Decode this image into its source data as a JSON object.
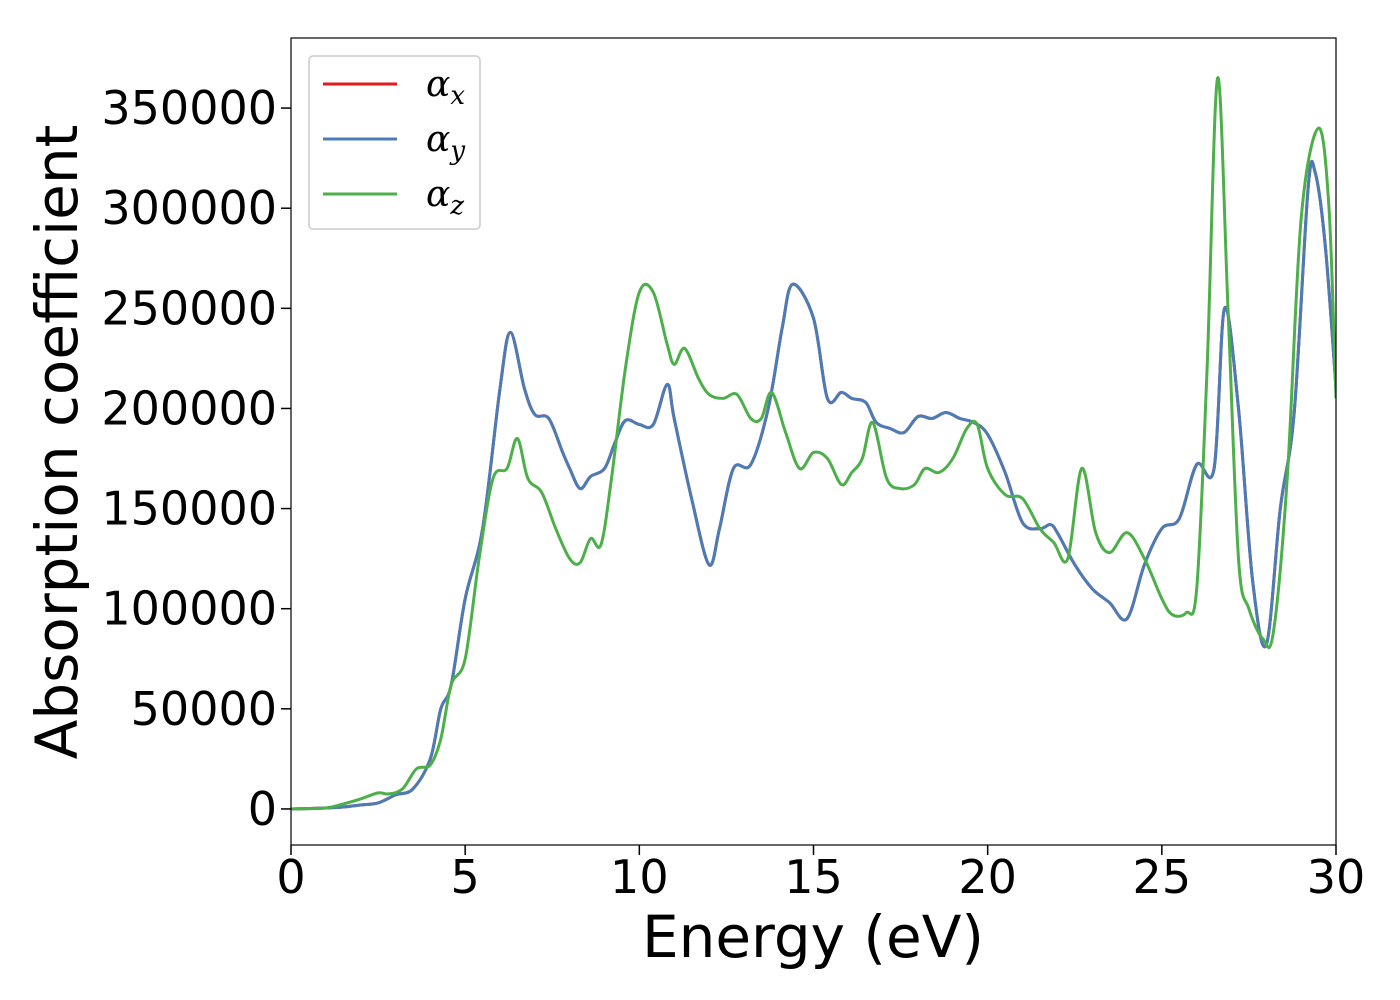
{
  "chart_data": {
    "type": "line",
    "title": "",
    "xlabel": "Energy (eV)",
    "ylabel": "Absorption coefficient",
    "xlim": [
      0,
      30
    ],
    "ylim": [
      -18000,
      385000
    ],
    "xticks": [
      0,
      5,
      10,
      15,
      20,
      25,
      30
    ],
    "xtick_labels": [
      "0",
      "5",
      "10",
      "15",
      "20",
      "25",
      "30"
    ],
    "yticks": [
      0,
      50000,
      100000,
      150000,
      200000,
      250000,
      300000,
      350000
    ],
    "ytick_labels": [
      "0",
      "50000",
      "100000",
      "150000",
      "200000",
      "250000",
      "300000",
      "350000"
    ],
    "grid": false,
    "legend_position": "top-left",
    "series": [
      {
        "name": "α",
        "subscript": "x",
        "color": "#e41a1c",
        "x": [
          0,
          1,
          1.5,
          2,
          2.5,
          3,
          3.5,
          4,
          4.3,
          4.6,
          5,
          5.5,
          6,
          6.3,
          6.7,
          7,
          7.4,
          7.8,
          8,
          8.3,
          8.6,
          9,
          9.3,
          9.6,
          10,
          10.4,
          10.8,
          11,
          11.5,
          12,
          12.3,
          12.7,
          13.2,
          13.7,
          14.1,
          14.4,
          15,
          15.4,
          15.8,
          16.1,
          16.5,
          16.8,
          17.2,
          17.6,
          18,
          18.4,
          18.8,
          19.2,
          19.6,
          20,
          20.5,
          21,
          21.5,
          21.8,
          22,
          22.5,
          23,
          23.5,
          24,
          24.5,
          25,
          25.5,
          26,
          26.5,
          26.8,
          27.2,
          27.6,
          28,
          28.4,
          28.8,
          29.2,
          29.4,
          29.7,
          30
        ],
        "y": [
          0,
          500,
          1000,
          2000,
          3000,
          7000,
          10000,
          25000,
          50000,
          62000,
          105000,
          140000,
          210000,
          238000,
          210000,
          197000,
          195000,
          178000,
          170000,
          160000,
          166000,
          170000,
          183000,
          194000,
          192000,
          192000,
          212000,
          195000,
          155000,
          122000,
          140000,
          170000,
          172000,
          200000,
          240000,
          262000,
          245000,
          205000,
          208000,
          205000,
          203000,
          193000,
          190000,
          188000,
          196000,
          195000,
          198000,
          195000,
          193000,
          187000,
          168000,
          143000,
          140000,
          142000,
          138000,
          122000,
          110000,
          103000,
          95000,
          122000,
          140000,
          145000,
          172000,
          170000,
          250000,
          200000,
          115000,
          82000,
          150000,
          198000,
          310000,
          318000,
          280000,
          210000
        ]
      },
      {
        "name": "α",
        "subscript": "y",
        "color": "#4a7db8",
        "x": [
          0,
          1,
          1.5,
          2,
          2.5,
          3,
          3.5,
          4,
          4.3,
          4.6,
          5,
          5.5,
          6,
          6.3,
          6.7,
          7,
          7.4,
          7.8,
          8,
          8.3,
          8.6,
          9,
          9.3,
          9.6,
          10,
          10.4,
          10.8,
          11,
          11.5,
          12,
          12.3,
          12.7,
          13.2,
          13.7,
          14.1,
          14.4,
          15,
          15.4,
          15.8,
          16.1,
          16.5,
          16.8,
          17.2,
          17.6,
          18,
          18.4,
          18.8,
          19.2,
          19.6,
          20,
          20.5,
          21,
          21.5,
          21.8,
          22,
          22.5,
          23,
          23.5,
          24,
          24.5,
          25,
          25.5,
          26,
          26.5,
          26.8,
          27.2,
          27.6,
          28,
          28.4,
          28.8,
          29.2,
          29.4,
          29.7,
          30
        ],
        "y": [
          0,
          500,
          1000,
          2000,
          3000,
          7000,
          10000,
          25000,
          50000,
          62000,
          105000,
          140000,
          210000,
          238000,
          210000,
          197000,
          195000,
          178000,
          170000,
          160000,
          166000,
          170000,
          183000,
          194000,
          192000,
          192000,
          212000,
          195000,
          155000,
          122000,
          140000,
          170000,
          172000,
          200000,
          240000,
          262000,
          245000,
          205000,
          208000,
          205000,
          203000,
          193000,
          190000,
          188000,
          196000,
          195000,
          198000,
          195000,
          193000,
          187000,
          168000,
          143000,
          140000,
          142000,
          138000,
          122000,
          110000,
          103000,
          95000,
          122000,
          140000,
          145000,
          172000,
          170000,
          250000,
          200000,
          115000,
          82000,
          150000,
          198000,
          310000,
          318000,
          280000,
          210000
        ]
      },
      {
        "name": "α",
        "subscript": "z",
        "color": "#4daf4a",
        "x": [
          0,
          1,
          1.5,
          2,
          2.5,
          2.8,
          3.2,
          3.6,
          4,
          4.3,
          4.6,
          5,
          5.4,
          5.8,
          6.2,
          6.5,
          6.8,
          7.2,
          7.6,
          8,
          8.3,
          8.6,
          8.9,
          9.2,
          9.6,
          10,
          10.4,
          10.8,
          11,
          11.3,
          11.7,
          12,
          12.4,
          12.8,
          13.2,
          13.5,
          13.8,
          14.2,
          14.6,
          15,
          15.4,
          15.8,
          16.1,
          16.4,
          16.7,
          17.1,
          17.5,
          17.9,
          18.2,
          18.6,
          19,
          19.4,
          19.7,
          20,
          20.5,
          21,
          21.5,
          21.9,
          22.3,
          22.7,
          23.1,
          23.5,
          24,
          24.5,
          25,
          25.3,
          25.7,
          26,
          26.3,
          26.6,
          26.9,
          27.2,
          27.5,
          27.9,
          28.2,
          28.6,
          29,
          29.5,
          29.8,
          30
        ],
        "y": [
          0,
          500,
          2500,
          5000,
          8000,
          7500,
          10000,
          20000,
          22000,
          35000,
          62000,
          75000,
          125000,
          165000,
          170000,
          185000,
          165000,
          158000,
          140000,
          125000,
          123000,
          135000,
          132000,
          165000,
          220000,
          258000,
          258000,
          232000,
          222000,
          230000,
          215000,
          207000,
          205000,
          207000,
          195000,
          195000,
          208000,
          188000,
          170000,
          178000,
          175000,
          162000,
          168000,
          175000,
          193000,
          165000,
          160000,
          162000,
          170000,
          168000,
          175000,
          190000,
          192000,
          170000,
          157000,
          155000,
          140000,
          133000,
          125000,
          170000,
          138000,
          128000,
          138000,
          125000,
          105000,
          97000,
          98000,
          110000,
          220000,
          365000,
          250000,
          125000,
          100000,
          85000,
          88000,
          165000,
          295000,
          340000,
          300000,
          205000
        ]
      }
    ]
  }
}
